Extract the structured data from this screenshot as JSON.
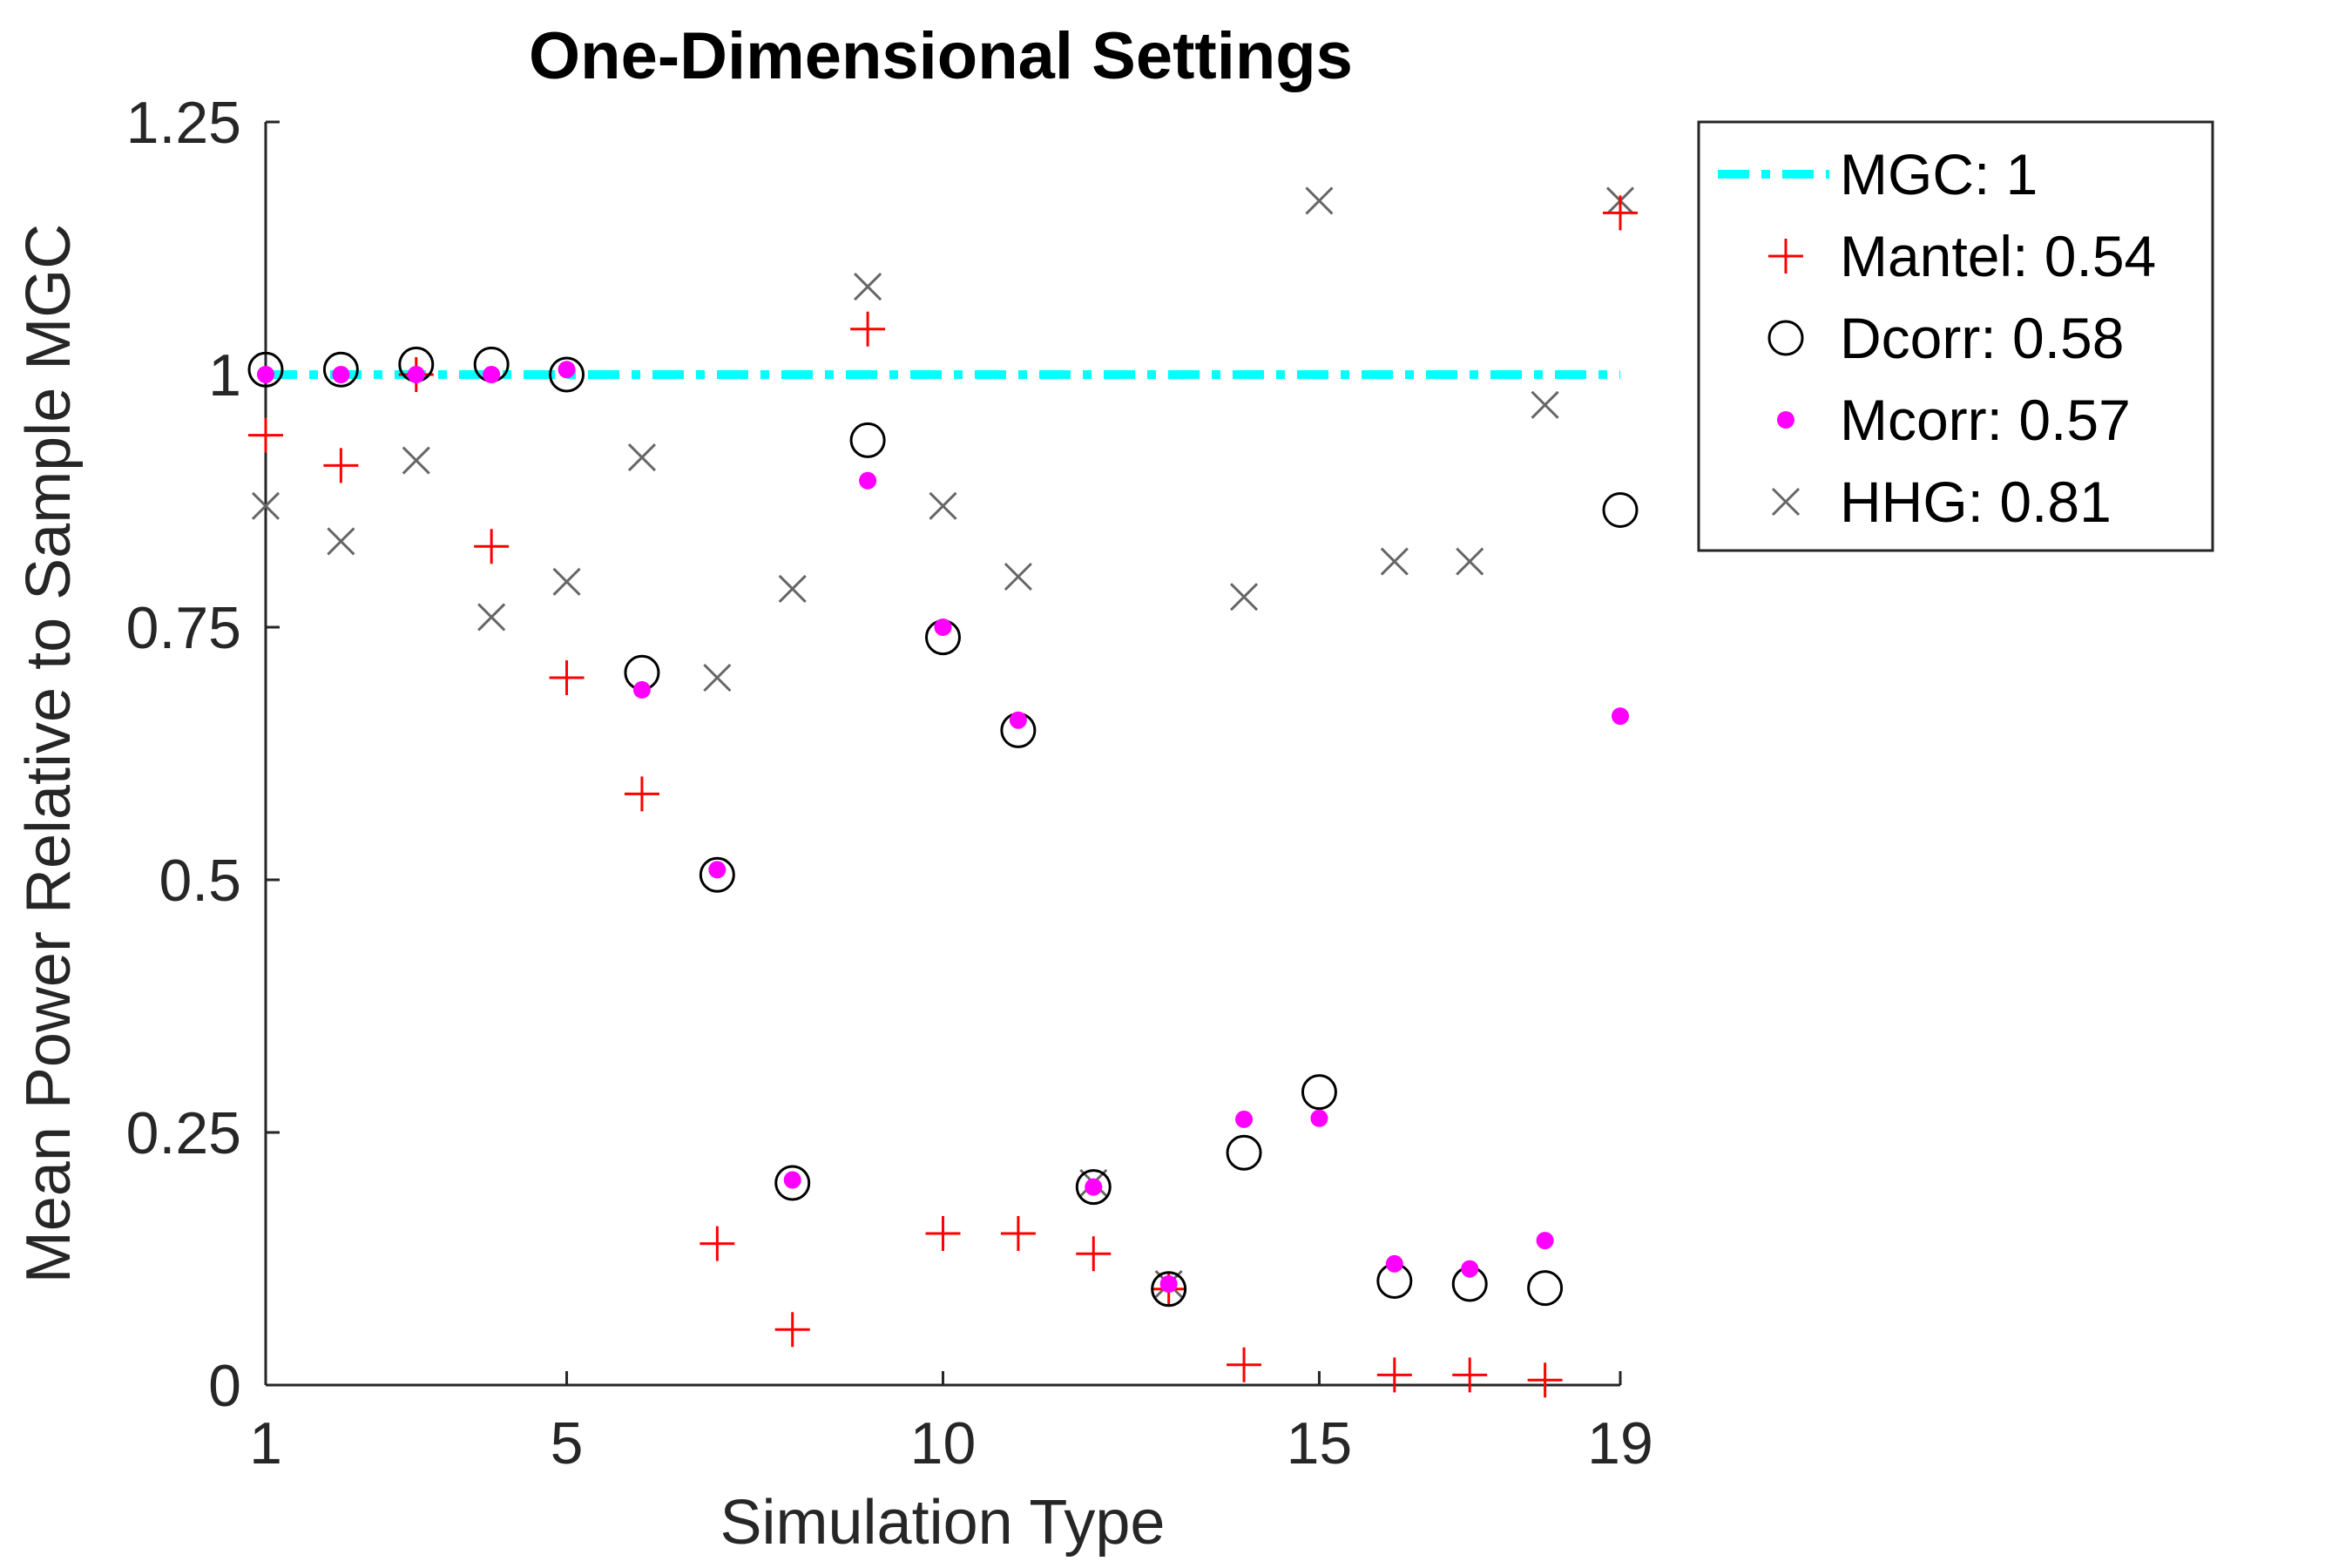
{
  "chart_data": {
    "type": "scatter",
    "title": "One-Dimensional Settings",
    "xlabel": "Simulation Type",
    "ylabel": "Mean Power Relative to Sample MGC",
    "xlim": [
      1,
      19
    ],
    "ylim": [
      0,
      1.25
    ],
    "xticks": [
      1,
      5,
      10,
      15,
      19
    ],
    "yticks": [
      0,
      0.25,
      0.5,
      0.75,
      1,
      1.25
    ],
    "xtick_labels": [
      "1",
      "5",
      "10",
      "15",
      "19"
    ],
    "ytick_labels": [
      "0",
      "0.25",
      "0.5",
      "0.75",
      "1",
      "1.25"
    ],
    "grid": false,
    "legend_position": "outside-top-right",
    "series": [
      {
        "name": "MGC: 1",
        "marker": "dash-dot-line",
        "color": "#00ffff",
        "x": [
          1,
          19
        ],
        "y": [
          1,
          1
        ]
      },
      {
        "name": "Mantel: 0.54",
        "marker": "plus",
        "color": "#ff0000",
        "x": [
          1,
          2,
          3,
          4,
          5,
          6,
          7,
          8,
          9,
          10,
          11,
          12,
          13,
          14,
          16,
          17,
          18,
          19
        ],
        "y": [
          0.94,
          0.91,
          1.0,
          0.83,
          0.7,
          0.585,
          0.14,
          0.055,
          1.045,
          0.15,
          0.15,
          0.13,
          0.095,
          0.02,
          0.01,
          0.01,
          0.005,
          1.16
        ]
      },
      {
        "name": "Dcorr: 0.58",
        "marker": "circle",
        "color": "#000000",
        "x": [
          1,
          2,
          3,
          4,
          5,
          6,
          7,
          8,
          9,
          10,
          11,
          12,
          13,
          14,
          15,
          16,
          17,
          18,
          19
        ],
        "y": [
          1.005,
          1.005,
          1.01,
          1.01,
          1.0,
          0.705,
          0.505,
          0.2,
          0.935,
          0.74,
          0.648,
          0.196,
          0.095,
          0.23,
          0.29,
          0.103,
          0.1,
          0.096,
          0.866
        ]
      },
      {
        "name": "Mcorr: 0.57",
        "marker": "dot",
        "color": "#ff00ff",
        "x": [
          1,
          2,
          3,
          4,
          5,
          6,
          7,
          8,
          9,
          10,
          11,
          12,
          13,
          14,
          15,
          16,
          17,
          18,
          19
        ],
        "y": [
          1.0,
          1.0,
          1.0,
          1.0,
          1.005,
          0.688,
          0.51,
          0.203,
          0.895,
          0.75,
          0.658,
          0.196,
          0.1,
          0.263,
          0.264,
          0.12,
          0.115,
          0.143,
          0.662
        ]
      },
      {
        "name": "HHG: 0.81",
        "marker": "cross",
        "color": "#666666",
        "x": [
          1,
          2,
          3,
          4,
          5,
          6,
          7,
          8,
          9,
          10,
          11,
          12,
          13,
          14,
          15,
          16,
          17,
          18,
          19
        ],
        "y": [
          0.87,
          0.835,
          0.915,
          0.76,
          0.795,
          0.918,
          0.7,
          0.788,
          1.087,
          0.87,
          0.8,
          0.2,
          0.1,
          0.78,
          1.172,
          0.815,
          0.815,
          0.97,
          1.172
        ]
      }
    ]
  }
}
